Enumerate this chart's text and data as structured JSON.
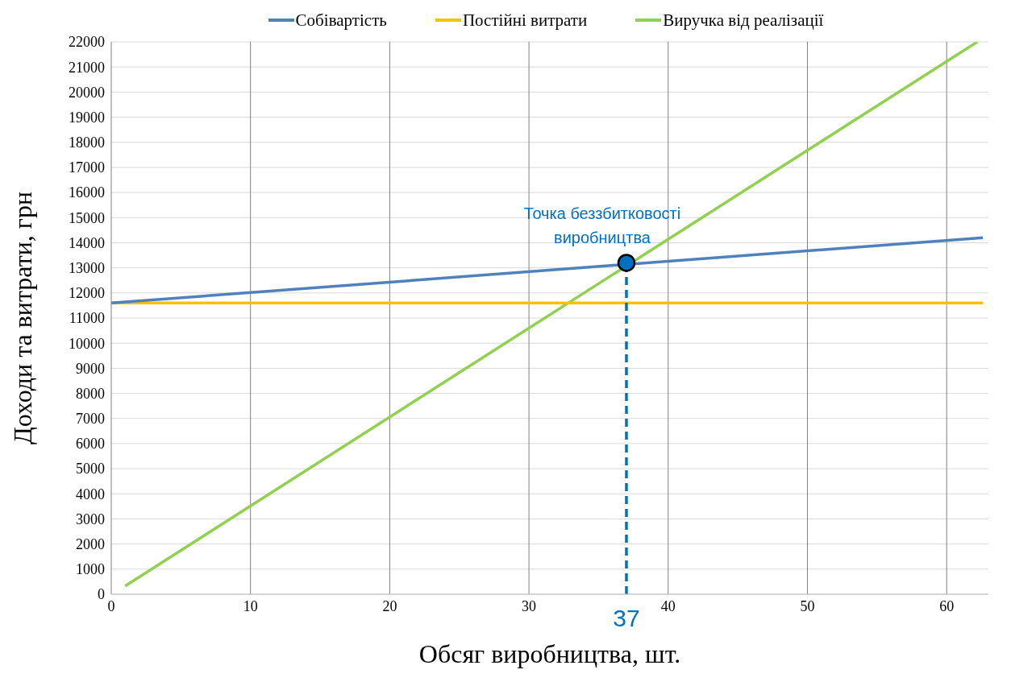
{
  "chart_data": {
    "type": "line",
    "xlabel": "Обсяг виробництва, шт.",
    "ylabel": "Доходи та витрати, грн",
    "xlim": [
      0,
      63
    ],
    "xticks": [
      0,
      10,
      20,
      30,
      40,
      50,
      60
    ],
    "ylim": [
      0,
      22000
    ],
    "yticks": [
      0,
      1000,
      2000,
      3000,
      4000,
      5000,
      6000,
      7000,
      8000,
      9000,
      10000,
      11000,
      12000,
      13000,
      14000,
      15000,
      16000,
      17000,
      18000,
      19000,
      20000,
      21000,
      22000
    ],
    "grid": true,
    "legend": "top",
    "marker": "none",
    "line_style": "solid",
    "series": [
      {
        "name": "Собівартість",
        "color": "#4f81bd",
        "x": [
          0,
          62.6
        ],
        "values": [
          11600,
          14200
        ]
      },
      {
        "name": "Постійні витрати",
        "color": "#ffc000",
        "x": [
          0,
          62.6
        ],
        "values": [
          11600,
          11600
        ]
      },
      {
        "name": "Виручка від реалізації",
        "color": "#92d050",
        "x": [
          1,
          62.2
        ],
        "values": [
          330,
          22000
        ]
      },
      {
        "type": "scatter",
        "marker": "circle",
        "color": "#0070c0",
        "x": [
          37
        ],
        "values": [
          13200
        ]
      }
    ],
    "ref_lines": [
      {
        "axis": "x",
        "value": 37,
        "label": "37",
        "color": "#0070c0",
        "line_style": "dashed"
      }
    ],
    "annotations": [
      {
        "text": "Точка беззбитковості виробництва",
        "x": 37,
        "y": 13200
      }
    ]
  }
}
